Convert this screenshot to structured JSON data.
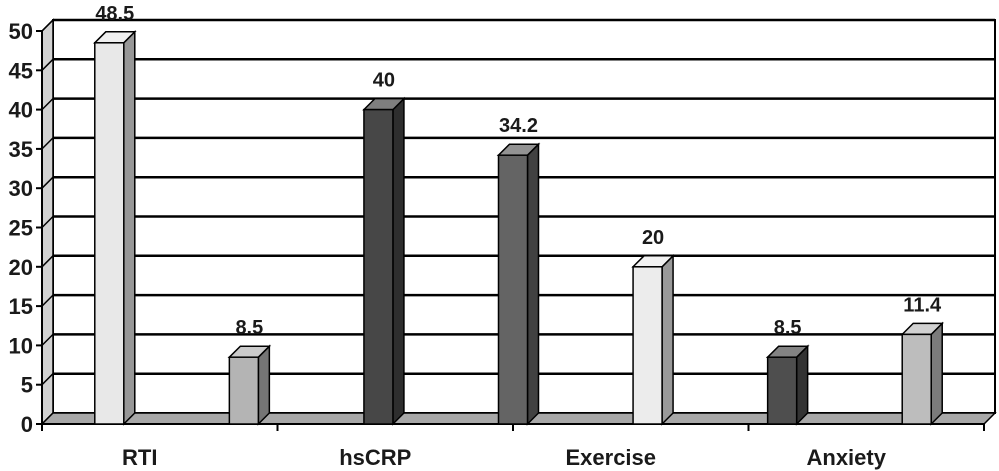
{
  "chart_data": {
    "type": "bar",
    "style": "3d",
    "categories": [
      "RTI",
      "hsCRP",
      "Exercise",
      "Anxiety"
    ],
    "ylim": [
      0,
      50
    ],
    "yticks": [
      0,
      5,
      10,
      15,
      20,
      25,
      30,
      35,
      40,
      45,
      50
    ],
    "grid": true,
    "legend": "none",
    "bars": [
      {
        "category": "RTI",
        "value": 48.5,
        "label": "48.5",
        "color": "#e8e8e8"
      },
      {
        "category": "RTI",
        "value": 8.5,
        "label": "8.5",
        "color": "#b4b4b4"
      },
      {
        "category": "hsCRP",
        "value": 40,
        "label": "40",
        "color": "#474747"
      },
      {
        "category": "hsCRP",
        "value": 34.2,
        "label": "34.2",
        "color": "#646464"
      },
      {
        "category": "Exercise",
        "value": 20,
        "label": "20",
        "color": "#ececec"
      },
      {
        "category": "Exercise",
        "value": 8.5,
        "label": "8.5",
        "color": "#4e4e4e"
      },
      {
        "category": "Anxiety",
        "value": 11.4,
        "label": "11.4",
        "color": "#bdbdbd"
      }
    ]
  }
}
